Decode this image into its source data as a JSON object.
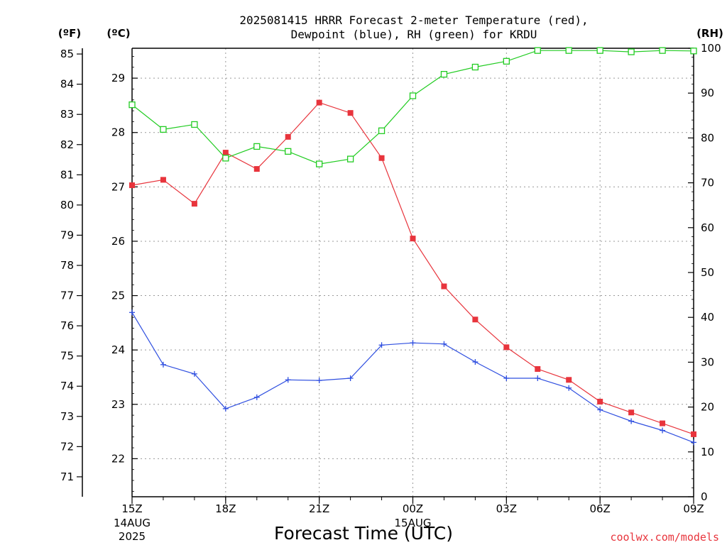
{
  "chart_data": {
    "type": "line",
    "title_line1": "2025081415 HRRR Forecast 2-meter Temperature (red),",
    "title_line2": "Dewpoint (blue), RH (green) for KRDU",
    "xlabel": "Forecast Time (UTC)",
    "credit": "coolwx.com/models",
    "units": {
      "fahrenheit": "(ºF)",
      "celsius": "(ºC)",
      "rh": "(RH)"
    },
    "x_hours": [
      15,
      16,
      17,
      18,
      19,
      20,
      21,
      22,
      23,
      24,
      25,
      26,
      27,
      28,
      29,
      30,
      31,
      32,
      33
    ],
    "x_ticks": [
      {
        "hour": 15,
        "label": "15Z",
        "sub1": "14AUG",
        "sub2": "2025"
      },
      {
        "hour": 18,
        "label": "18Z",
        "sub1": "",
        "sub2": ""
      },
      {
        "hour": 21,
        "label": "21Z",
        "sub1": "",
        "sub2": ""
      },
      {
        "hour": 24,
        "label": "00Z",
        "sub1": "15AUG",
        "sub2": ""
      },
      {
        "hour": 27,
        "label": "03Z",
        "sub1": "",
        "sub2": ""
      },
      {
        "hour": 30,
        "label": "06Z",
        "sub1": "",
        "sub2": ""
      },
      {
        "hour": 33,
        "label": "09Z",
        "sub1": "",
        "sub2": ""
      }
    ],
    "celsius_ticks": [
      22,
      23,
      24,
      25,
      26,
      27,
      28,
      29
    ],
    "fahrenheit_ticks": [
      71,
      72,
      73,
      74,
      75,
      76,
      77,
      78,
      79,
      80,
      81,
      82,
      83,
      84,
      85
    ],
    "rh_ticks": [
      0,
      10,
      20,
      30,
      40,
      50,
      60,
      70,
      80,
      90,
      100
    ],
    "celsius_range": [
      21.3,
      29.55
    ],
    "rh_range": [
      0,
      100
    ],
    "series": [
      {
        "name": "Temperature",
        "color": "#e8343c",
        "marker": "filled-square",
        "values": [
          27.03,
          27.13,
          26.69,
          27.63,
          27.33,
          27.92,
          28.55,
          28.36,
          27.53,
          26.05,
          25.17,
          24.56,
          24.05,
          23.65,
          23.45,
          23.05,
          22.85,
          22.65,
          22.45
        ]
      },
      {
        "name": "Dewpoint",
        "color": "#2f4fe0",
        "marker": "plus",
        "values": [
          24.69,
          23.73,
          23.56,
          22.92,
          23.13,
          23.45,
          23.44,
          23.48,
          24.09,
          24.13,
          24.11,
          23.78,
          23.48,
          23.48,
          23.3,
          22.9,
          22.69,
          22.52,
          22.3
        ]
      },
      {
        "name": "RH",
        "color": "#22cc22",
        "marker": "open-square",
        "values": [
          87.4,
          81.9,
          83.0,
          75.5,
          78.1,
          77.0,
          74.2,
          75.3,
          81.6,
          89.4,
          94.2,
          95.8,
          97.1,
          99.5,
          99.5,
          99.5,
          99.2,
          99.5,
          99.4
        ]
      }
    ]
  }
}
